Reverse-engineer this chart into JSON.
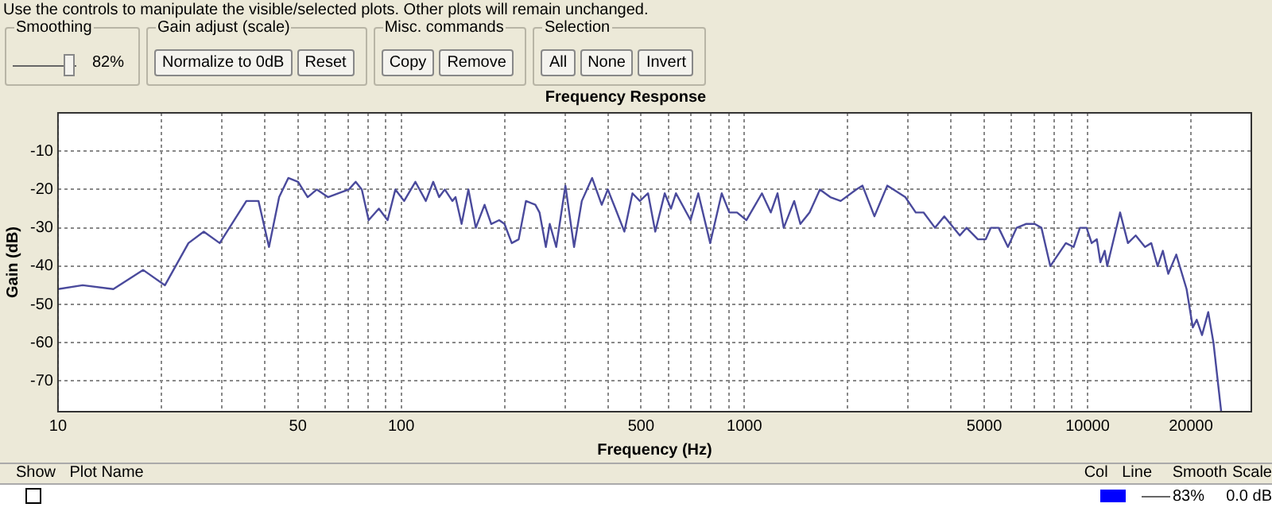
{
  "chart_data": {
    "type": "line",
    "title": "Frequency Response",
    "xlabel": "Frequency (Hz)",
    "ylabel": "Gain (dB)",
    "log": "x",
    "grid": true,
    "legend": false,
    "marker": "none",
    "line_style": "solid",
    "color": "#4a4a9c",
    "xlim": [
      10,
      30000
    ],
    "ylim": [
      -78,
      0
    ],
    "xticks": [
      10,
      {
        "value": 20,
        "label": null
      },
      {
        "value": 30,
        "label": null
      },
      {
        "value": 40,
        "label": null
      },
      50,
      {
        "value": 60,
        "label": null
      },
      {
        "value": 70,
        "label": null
      },
      {
        "value": 80,
        "label": null
      },
      {
        "value": 90,
        "label": null
      },
      100,
      {
        "value": 200,
        "label": null
      },
      {
        "value": 300,
        "label": null
      },
      {
        "value": 400,
        "label": null
      },
      500,
      {
        "value": 600,
        "label": null
      },
      {
        "value": 700,
        "label": null
      },
      {
        "value": 800,
        "label": null
      },
      {
        "value": 900,
        "label": null
      },
      1000,
      {
        "value": 2000,
        "label": null
      },
      {
        "value": 3000,
        "label": null
      },
      {
        "value": 4000,
        "label": null
      },
      5000,
      {
        "value": 6000,
        "label": null
      },
      {
        "value": 7000,
        "label": null
      },
      {
        "value": 8000,
        "label": null
      },
      {
        "value": 9000,
        "label": null
      },
      10000,
      20000
    ],
    "yticks": [
      -70,
      -60,
      -50,
      -40,
      -30,
      -20,
      -10
    ],
    "x": [
      10,
      11.8,
      14.5,
      17.7,
      20.5,
      24,
      26.6,
      29.6,
      35.4,
      38.4,
      41.2,
      44.1,
      46.9,
      50.1,
      53.4,
      56.8,
      61.2,
      65.7,
      70.4,
      73.7,
      76.8,
      80.4,
      86.1,
      91.3,
      96.2,
      102,
      110,
      118,
      124,
      129,
      134,
      141,
      144,
      150,
      157,
      165,
      175,
      183,
      193,
      200,
      210,
      220,
      231,
      246,
      253,
      264,
      271,
      283,
      301,
      319,
      336,
      360,
      384,
      400,
      421,
      447,
      472,
      496,
      524,
      550,
      586,
      611,
      632,
      697,
      734,
      795,
      859,
      904,
      952,
      1014,
      1125,
      1194,
      1249,
      1302,
      1397,
      1456,
      1549,
      1660,
      1780,
      1908,
      2118,
      2209,
      2393,
      2608,
      2944,
      3158,
      3327,
      3593,
      3823,
      4244,
      4440,
      4790,
      5050,
      5225,
      5506,
      5860,
      6214,
      6613,
      7015,
      7338,
      7786,
      8642,
      9109,
      9499,
      9931,
      10280,
      10640,
      10900,
      11220,
      11410,
      12440,
      13110,
      13810,
      14700,
      15330,
      16000,
      16570,
      17180,
      18130,
      19430,
      20260,
      20800,
      21550,
      22470,
      23270,
      24510
    ],
    "values": [
      -46,
      -45,
      -46,
      -41,
      -45,
      -34,
      -31,
      -34,
      -23,
      -23,
      -35,
      -22,
      -17,
      -18,
      -22,
      -20,
      -22,
      -21,
      -20,
      -18,
      -20,
      -28,
      -25,
      -28,
      -20,
      -23,
      -18,
      -23,
      -18,
      -22,
      -20,
      -23,
      -22,
      -29,
      -20,
      -30,
      -24,
      -29,
      -28,
      -29,
      -34,
      -33,
      -23,
      -24,
      -26,
      -35,
      -29,
      -35,
      -19,
      -35,
      -23,
      -17,
      -24,
      -20,
      -25,
      -31,
      -21,
      -23,
      -21,
      -31,
      -21,
      -25,
      -21,
      -28,
      -21,
      -34,
      -21,
      -26,
      -26,
      -28,
      -21,
      -26,
      -21,
      -30,
      -23,
      -29,
      -26,
      -20,
      -22,
      -23,
      -20,
      -19,
      -27,
      -19,
      -22,
      -26,
      -26,
      -30,
      -27,
      -32,
      -30,
      -33,
      -33,
      -30,
      -30,
      -35,
      -30,
      -29,
      -29,
      -30,
      -40,
      -34,
      -35,
      -30,
      -30,
      -34,
      -33,
      -39,
      -36,
      -40,
      -26,
      -34,
      -32,
      -35,
      -34,
      -40,
      -36,
      -42,
      -37,
      -46,
      -56,
      -54,
      -58,
      -52,
      -60,
      -78
    ],
    "annotations": [
      "Use the controls to manipulate the visible/selected plots.  Other plots will remain unchanged.",
      "Smoothing",
      "82%",
      "Gain adjust (scale)",
      "Normalize to 0dB",
      "Reset",
      "Misc. commands",
      "Copy",
      "Remove",
      "Selection",
      "All",
      "None",
      "Invert",
      "Show",
      "Plot Name",
      "Col",
      "Line",
      "Smooth",
      "Scale",
      "83%",
      "0.0 dB"
    ]
  }
}
